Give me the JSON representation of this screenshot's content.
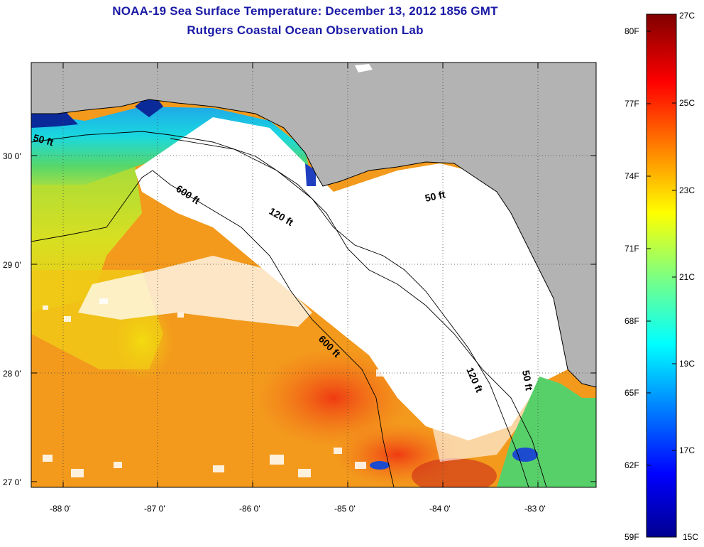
{
  "title": "NOAA-19 Sea Surface Temperature:  December 13, 2012 1856 GMT",
  "subtitle": "Rutgers Coastal Ocean Observation Lab",
  "map": {
    "lon_ticks": [
      "-88 0'",
      "-87 0'",
      "-86 0'",
      "-85 0'",
      "-84 0'",
      "-83 0'"
    ],
    "lat_ticks": [
      "30 0'",
      "29 0'",
      "28 0'",
      "27 0'"
    ],
    "contours": {
      "c50a": "50 ft",
      "c600a": "600 ft",
      "c120a": "120 ft",
      "c50b": "50 ft",
      "c600b": "600 ft",
      "c120b": "120 ft",
      "c50c": "50 ft"
    },
    "colors": {
      "land": "#b3b3b3",
      "cloud": "#ffffff"
    }
  },
  "colorbar": {
    "fahrenheit": [
      "80F",
      "77F",
      "74F",
      "71F",
      "68F",
      "65F",
      "62F",
      "59F"
    ],
    "celsius": [
      "27C",
      "25C",
      "23C",
      "21C",
      "19C",
      "17C",
      "15C"
    ]
  }
}
